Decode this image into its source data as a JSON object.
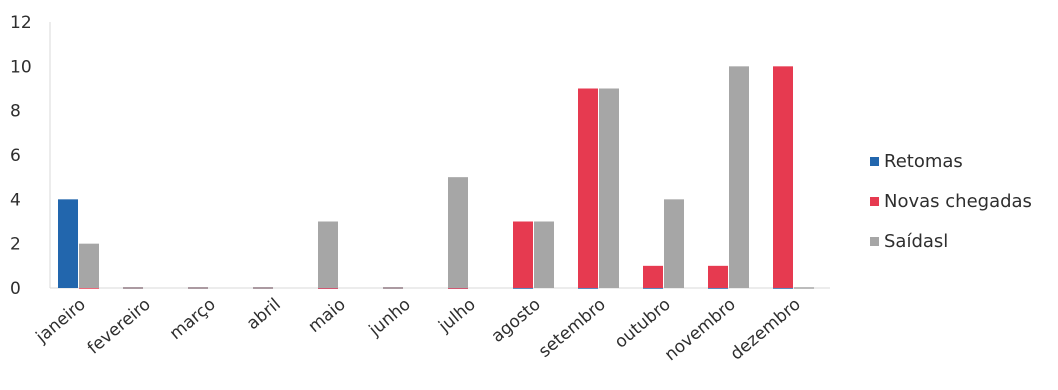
{
  "chart_data": {
    "type": "bar",
    "title": "",
    "xlabel": "",
    "ylabel": "",
    "ylim": [
      0,
      12
    ],
    "yticks": [
      0,
      2,
      4,
      6,
      8,
      10,
      12
    ],
    "grid": false,
    "legend_position": "right",
    "categories": [
      "janeiro",
      "fevereiro",
      "março",
      "abril",
      "maio",
      "junho",
      "julho",
      "agosto",
      "setembro",
      "outubro",
      "novembro",
      "dezembro"
    ],
    "series": [
      {
        "name": "Retomas",
        "color": "#2266ad",
        "values": [
          4,
          0,
          0,
          0,
          0,
          0,
          0,
          0,
          0,
          0,
          0,
          0
        ]
      },
      {
        "name": "Novas chegadas",
        "color": "#e63a50",
        "values": [
          0,
          0,
          0,
          0,
          0,
          0,
          0,
          3,
          9,
          1,
          1,
          10
        ]
      },
      {
        "name": "Saídasl",
        "color": "#a6a6a6",
        "values": [
          2,
          0,
          0,
          0,
          3,
          0,
          5,
          3,
          9,
          4,
          10,
          0
        ]
      }
    ]
  }
}
